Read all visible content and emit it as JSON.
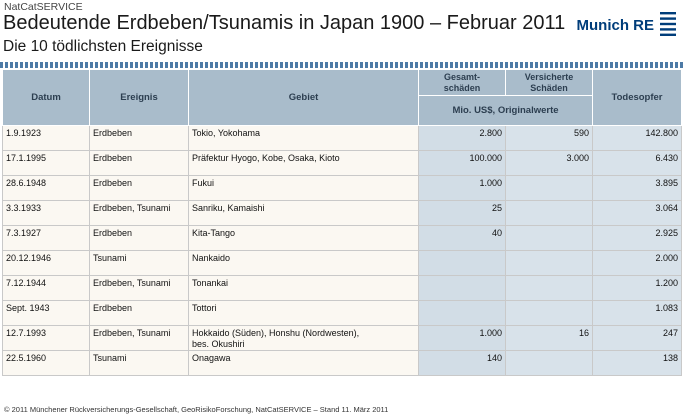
{
  "header": {
    "kicker": "NatCatSERVICE",
    "title": "Bedeutende Erdbeben/Tsunamis in Japan 1900 – Februar 2011",
    "subtitle": "Die 10 tödlichsten Ereignisse",
    "logo_text": "Munich RE"
  },
  "table": {
    "headers": {
      "datum": "Datum",
      "ereignis": "Ereignis",
      "gebiet": "Gebiet",
      "gesamt": "Gesamt-\nschäden",
      "versichert": "Versicherte\nSchäden",
      "unit": "Mio. US$, Originalwerte",
      "todesopfer": "Todesopfer"
    },
    "rows": [
      {
        "datum": "1.9.1923",
        "ereignis": "Erdbeben",
        "gebiet": "Tokio, Yokohama",
        "gesamt": "2.800",
        "versichert": "590",
        "todesopfer": "142.800"
      },
      {
        "datum": "17.1.1995",
        "ereignis": "Erdbeben",
        "gebiet": "Präfektur  Hyogo, Kobe, Osaka, Kioto",
        "gesamt": "100.000",
        "versichert": "3.000",
        "todesopfer": "6.430"
      },
      {
        "datum": "28.6.1948",
        "ereignis": "Erdbeben",
        "gebiet": "Fukui",
        "gesamt": "1.000",
        "versichert": "",
        "todesopfer": "3.895"
      },
      {
        "datum": "3.3.1933",
        "ereignis": "Erdbeben, Tsunami",
        "gebiet": "Sanriku, Kamaishi",
        "gesamt": "25",
        "versichert": "",
        "todesopfer": "3.064"
      },
      {
        "datum": "7.3.1927",
        "ereignis": "Erdbeben",
        "gebiet": "Kita-Tango",
        "gesamt": "40",
        "versichert": "",
        "todesopfer": "2.925"
      },
      {
        "datum": "20.12.1946",
        "ereignis": "Tsunami",
        "gebiet": "Nankaido",
        "gesamt": "",
        "versichert": "",
        "todesopfer": "2.000"
      },
      {
        "datum": "7.12.1944",
        "ereignis": "Erdbeben, Tsunami",
        "gebiet": "Tonankai",
        "gesamt": "",
        "versichert": "",
        "todesopfer": "1.200"
      },
      {
        "datum": "Sept. 1943",
        "ereignis": "Erdbeben",
        "gebiet": "Tottori",
        "gesamt": "",
        "versichert": "",
        "todesopfer": "1.083"
      },
      {
        "datum": "12.7.1993",
        "ereignis": "Erdbeben, Tsunami",
        "gebiet": "Hokkaido (Süden), Honshu (Nordwesten),\nbes. Okushiri",
        "gesamt": "1.000",
        "versichert": "16",
        "todesopfer": "247"
      },
      {
        "datum": "22.5.1960",
        "ereignis": "Tsunami",
        "gebiet": "Onagawa",
        "gesamt": "140",
        "versichert": "",
        "todesopfer": "138"
      }
    ]
  },
  "footer": "© 2011 Münchener Rückversicherungs-Gesellschaft, GeoRisikoForschung, NatCatSERVICE – Stand 11. März 2011"
}
